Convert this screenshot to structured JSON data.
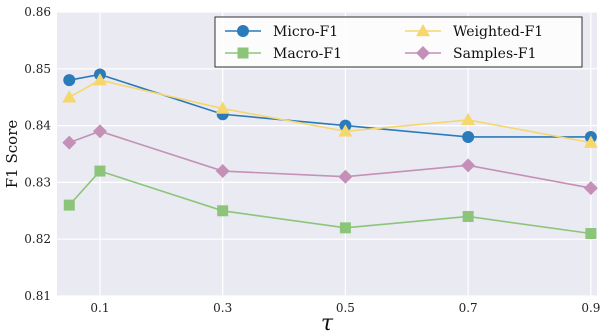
{
  "chart_data": {
    "type": "line",
    "title": "",
    "xlabel": "τ",
    "ylabel": "F1 Score",
    "x": [
      0.05,
      0.1,
      0.3,
      0.5,
      0.7,
      0.9
    ],
    "xticks": [
      0.1,
      0.3,
      0.5,
      0.7,
      0.9
    ],
    "xtick_labels": [
      "0.1",
      "0.3",
      "0.5",
      "0.7",
      "0.9"
    ],
    "xlim": [
      0.03,
      0.91
    ],
    "ylim": [
      0.81,
      0.86
    ],
    "yticks": [
      0.81,
      0.82,
      0.83,
      0.84,
      0.85,
      0.86
    ],
    "ytick_labels": [
      "0.81",
      "0.82",
      "0.83",
      "0.84",
      "0.85",
      "0.86"
    ],
    "grid": true,
    "legend_position": "top-right",
    "series": [
      {
        "name": "Micro-F1",
        "color": "#2b7bba",
        "marker": "circle",
        "values": [
          0.848,
          0.849,
          0.842,
          0.84,
          0.838,
          0.838
        ]
      },
      {
        "name": "Weighted-F1",
        "color": "#f5d76e",
        "marker": "triangle",
        "values": [
          0.845,
          0.848,
          0.843,
          0.839,
          0.841,
          0.837
        ]
      },
      {
        "name": "Macro-F1",
        "color": "#8cc57a",
        "marker": "square",
        "values": [
          0.826,
          0.832,
          0.825,
          0.822,
          0.824,
          0.821
        ]
      },
      {
        "name": "Samples-F1",
        "color": "#c490b8",
        "marker": "diamond",
        "values": [
          0.837,
          0.839,
          0.832,
          0.831,
          0.833,
          0.829
        ]
      }
    ]
  }
}
